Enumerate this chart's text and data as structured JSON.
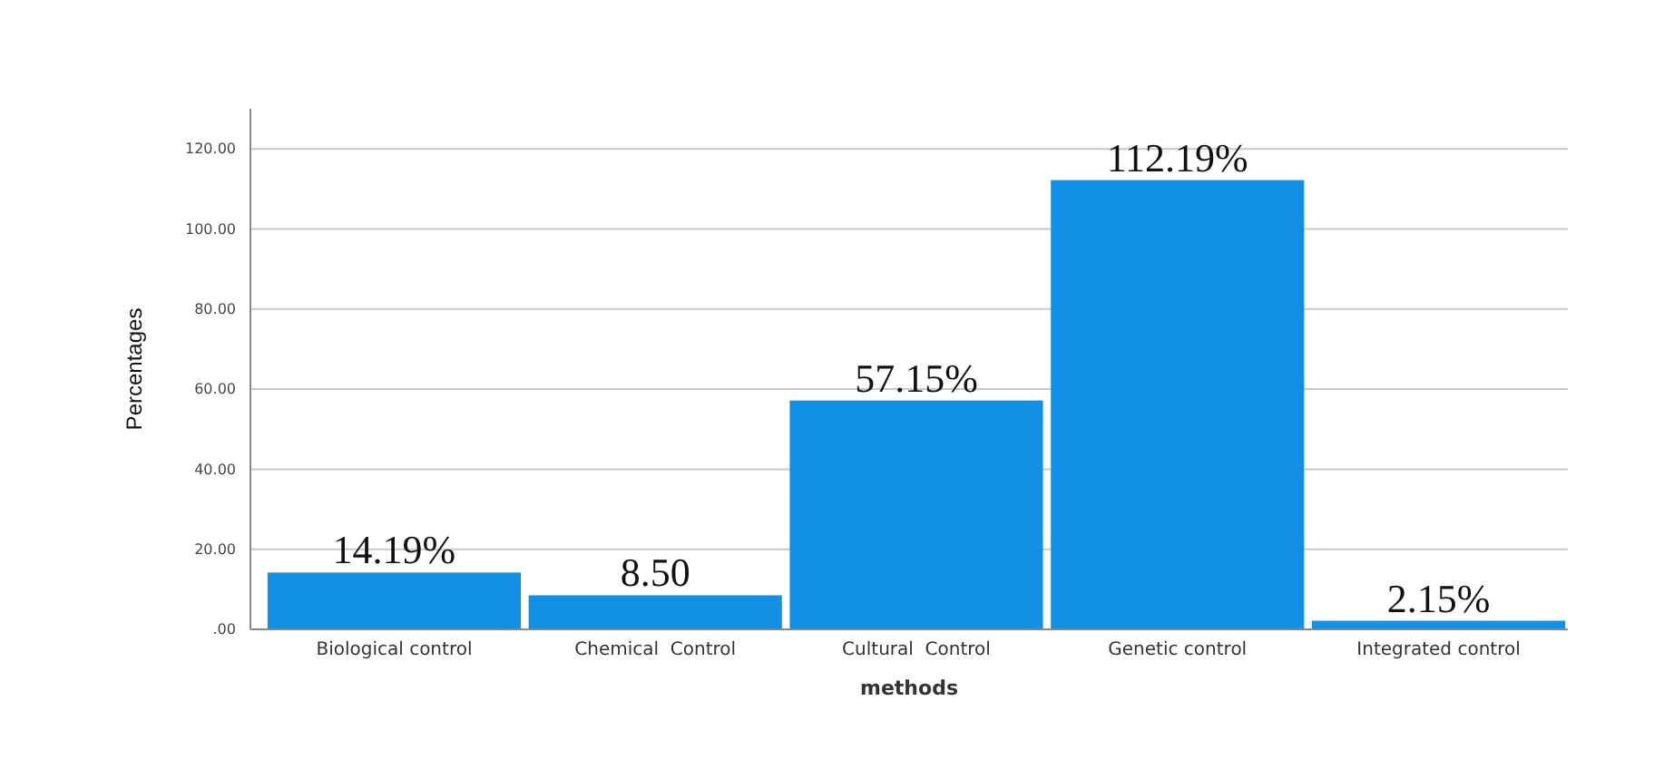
{
  "chart_data": {
    "type": "bar",
    "xlabel": "methods",
    "ylabel": "Percentages",
    "categories": [
      "Biological control",
      "Chemical  Control",
      "Cultural  Control",
      "Genetic control",
      "Integrated control"
    ],
    "values": [
      14.19,
      8.5,
      57.15,
      112.19,
      2.15
    ],
    "value_labels": [
      "14.19%",
      "8.50",
      "57.15%",
      "112.19%",
      "2.15%"
    ],
    "color": "#1190e6",
    "ylim": [
      0,
      130
    ],
    "yticks": [
      {
        "value": 0,
        "label": ".00"
      },
      {
        "value": 20,
        "label": "20.00"
      },
      {
        "value": 40,
        "label": "40.00"
      },
      {
        "value": 60,
        "label": "60.00"
      },
      {
        "value": 80,
        "label": "80.00"
      },
      {
        "value": 100,
        "label": "100.00"
      },
      {
        "value": 120,
        "label": "120.00"
      }
    ],
    "grid": "y"
  }
}
